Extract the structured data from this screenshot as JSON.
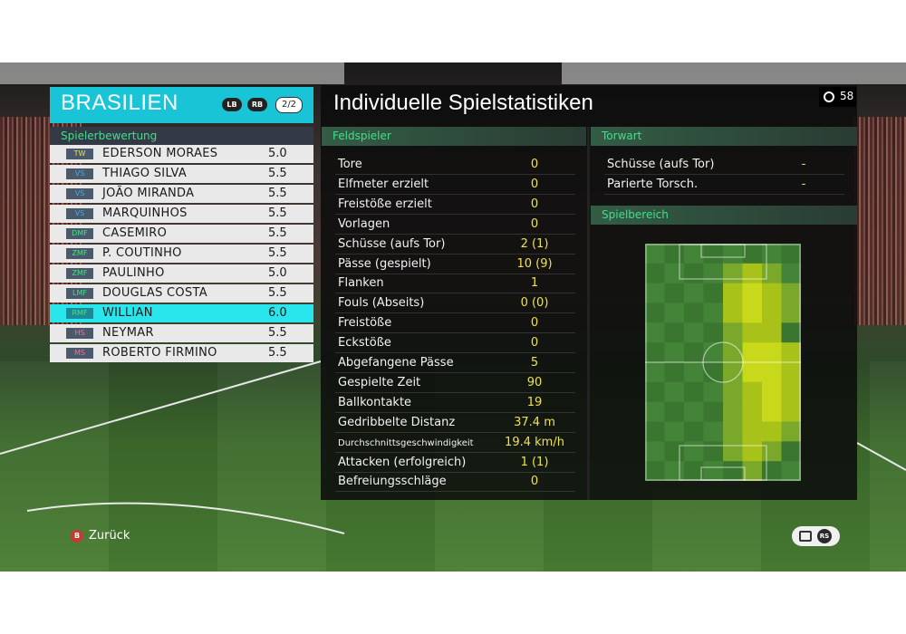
{
  "team": {
    "name": "BRASILIEN",
    "lb_label": "LB",
    "rb_label": "RB",
    "page_indicator": "2/2",
    "rating_header": "Spielerbewertung"
  },
  "players": [
    {
      "pos": "TW",
      "pos_color": "#f0e24a",
      "name": "EDERSON MORAES",
      "score": "5.0"
    },
    {
      "pos": "VS",
      "pos_color": "#4aa8f0",
      "name": "THIAGO SILVA",
      "score": "5.5"
    },
    {
      "pos": "VS",
      "pos_color": "#4aa8f0",
      "name": "JOÃO MIRANDA",
      "score": "5.5"
    },
    {
      "pos": "VS",
      "pos_color": "#4aa8f0",
      "name": "MARQUINHOS",
      "score": "5.5"
    },
    {
      "pos": "DMF",
      "pos_color": "#4ae08a",
      "name": "CASEMIRO",
      "score": "5.5"
    },
    {
      "pos": "ZMF",
      "pos_color": "#4ae08a",
      "name": "P. COUTINHO",
      "score": "5.5"
    },
    {
      "pos": "ZMF",
      "pos_color": "#4ae08a",
      "name": "PAULINHO",
      "score": "5.0"
    },
    {
      "pos": "LMF",
      "pos_color": "#4ae08a",
      "name": "DOUGLAS COSTA",
      "score": "5.5"
    },
    {
      "pos": "RMF",
      "pos_color": "#4ae08a",
      "name": "WILLIAN",
      "score": "6.0"
    },
    {
      "pos": "HS",
      "pos_color": "#ff6a9a",
      "name": "NEYMAR",
      "score": "5.5"
    },
    {
      "pos": "MS",
      "pos_color": "#ff6a9a",
      "name": "ROBERTO FIRMINO",
      "score": "5.5"
    }
  ],
  "selected_player_index": 8,
  "stats_panel": {
    "title": "Individuelle Spielstatistiken",
    "timer": "58",
    "field_header": "Feldspieler",
    "keeper_header": "Torwart",
    "area_header": "Spielbereich"
  },
  "field_stats": [
    {
      "label": "Tore",
      "value": "0"
    },
    {
      "label": "Elfmeter erzielt",
      "value": "0"
    },
    {
      "label": "Freistöße erzielt",
      "value": "0"
    },
    {
      "label": "Vorlagen",
      "value": "0"
    },
    {
      "label": "Schüsse (aufs Tor)",
      "value": "2 (1)"
    },
    {
      "label": "Pässe (gespielt)",
      "value": "10 (9)"
    },
    {
      "label": "Flanken",
      "value": "1"
    },
    {
      "label": "Fouls (Abseits)",
      "value": "0 (0)"
    },
    {
      "label": "Freistöße",
      "value": "0"
    },
    {
      "label": "Eckstöße",
      "value": "0"
    },
    {
      "label": "Abgefangene Pässe",
      "value": "5"
    },
    {
      "label": "Gespielte Zeit",
      "value": "90"
    },
    {
      "label": "Ballkontakte",
      "value": "19"
    },
    {
      "label": "Gedribbelte Distanz",
      "value": "37.4 m"
    },
    {
      "label": "Durchschnittsgeschwindigkeit",
      "value": "19.4 km/h"
    },
    {
      "label": "Attacken (erfolgreich)",
      "value": "1 (1)"
    },
    {
      "label": "Befreiungsschläge",
      "value": "0"
    }
  ],
  "keeper_stats": [
    {
      "label": "Schüsse (aufs Tor)",
      "value": "-"
    },
    {
      "label": "Parierte Torsch.",
      "value": "-"
    }
  ],
  "heatmap_intensity": [
    [
      0,
      0,
      0,
      0,
      0,
      0,
      0,
      0
    ],
    [
      0,
      0,
      0,
      0,
      1,
      2,
      1,
      0
    ],
    [
      0,
      0,
      0,
      0,
      2,
      3,
      2,
      1
    ],
    [
      0,
      0,
      0,
      0,
      2,
      3,
      2,
      1
    ],
    [
      0,
      0,
      0,
      0,
      1,
      2,
      2,
      0
    ],
    [
      0,
      0,
      0,
      0,
      1,
      3,
      3,
      2
    ],
    [
      0,
      0,
      0,
      0,
      1,
      3,
      3,
      2
    ],
    [
      0,
      0,
      0,
      0,
      1,
      2,
      3,
      2
    ],
    [
      0,
      0,
      0,
      0,
      1,
      2,
      3,
      2
    ],
    [
      0,
      0,
      0,
      0,
      1,
      2,
      2,
      1
    ],
    [
      0,
      0,
      0,
      0,
      1,
      2,
      1,
      0
    ],
    [
      0,
      0,
      0,
      0,
      0,
      1,
      0,
      0
    ]
  ],
  "footer": {
    "back_button": "B",
    "back_label": "Zurück",
    "rs_button": "RS"
  },
  "colors": {
    "accent": "#19c4d6",
    "selected_row": "#28e6ec",
    "section_text": "#3fe08a",
    "value_text": "#f0e24a"
  }
}
